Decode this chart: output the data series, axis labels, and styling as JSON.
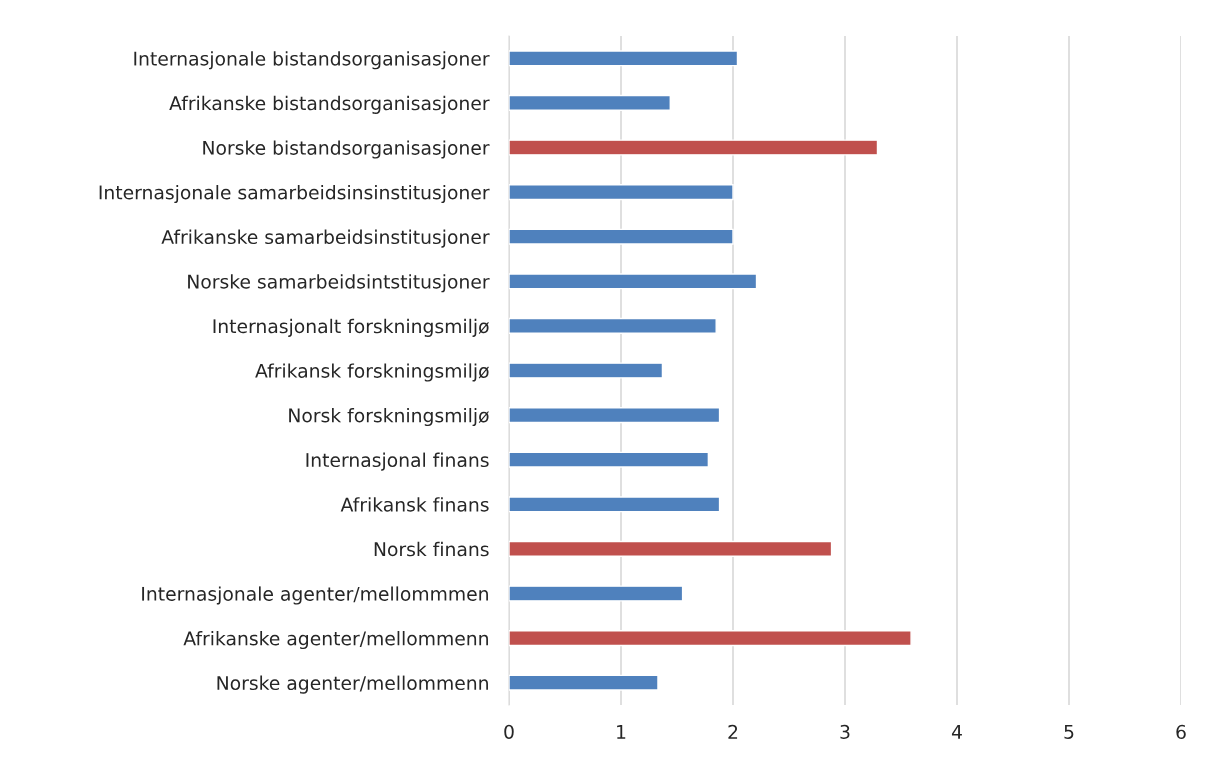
{
  "chart_data": {
    "type": "bar",
    "orientation": "horizontal",
    "categories": [
      "Internasjonale bistandsorganisasjoner",
      "Afrikanske bistandsorganisasjoner",
      "Norske bistandsorganisasjoner",
      "Internasjonale samarbeidsinsinstitusjoner",
      "Afrikanske samarbeidsinstitusjoner",
      "Norske samarbeidsintstitusjoner",
      "Internasjonalt forskningsmiljø",
      "Afrikansk forskningsmiljø",
      "Norsk forskningsmiljø",
      "Internasjonal finans",
      "Afrikansk finans",
      "Norsk finans",
      "Internasjonale agenter/mellommmen",
      "Afrikanske agenter/mellommenn",
      "Norske agenter/mellommenn"
    ],
    "values": [
      2.04,
      1.44,
      3.29,
      2.0,
      2.0,
      2.21,
      1.85,
      1.37,
      1.88,
      1.78,
      1.88,
      2.88,
      1.55,
      3.59,
      1.33
    ],
    "colors": [
      "#4f81bd",
      "#4f81bd",
      "#c0504d",
      "#4f81bd",
      "#4f81bd",
      "#4f81bd",
      "#4f81bd",
      "#4f81bd",
      "#4f81bd",
      "#4f81bd",
      "#4f81bd",
      "#c0504d",
      "#4f81bd",
      "#c0504d",
      "#4f81bd"
    ],
    "xlim": [
      0,
      6
    ],
    "xticks": [
      0,
      1,
      2,
      3,
      4,
      5,
      6
    ],
    "grid": "x",
    "legend": false
  }
}
